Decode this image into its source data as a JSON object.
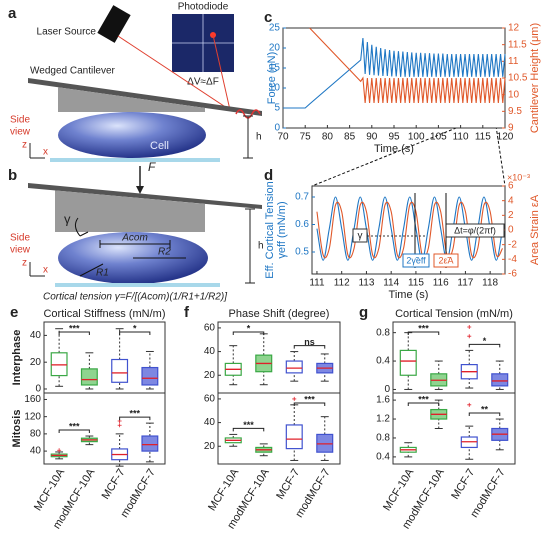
{
  "schematic_a": {
    "label": "a",
    "laser": "Laser Source",
    "photodiode": "Photodiode",
    "signal": "ΔV≈ΔF",
    "cantilever": "Wedged Cantilever",
    "side_view": [
      "Side",
      "view"
    ],
    "z": "z",
    "x": "x",
    "cell": "Cell",
    "h": "h"
  },
  "schematic_b": {
    "label": "b",
    "force": "F",
    "gamma": "γ",
    "side_view": [
      "Side",
      "view"
    ],
    "z": "z",
    "x": "x",
    "a_com": "Acom",
    "r2": "R2",
    "r1": "R1",
    "h": "h",
    "formula": "Cortical tension γ=F/[(Acom)(1/R1+1/R2)]"
  },
  "chart_data": [
    {
      "type": "line",
      "label": "c",
      "xlabel": "Time (s)",
      "ylabel": "Force (nN)",
      "y2label": "Cantilever Height (μm)",
      "xlim": [
        70,
        120
      ],
      "xticks": [
        70,
        75,
        80,
        85,
        90,
        95,
        100,
        105,
        110,
        115,
        120
      ],
      "ylim": [
        0,
        25
      ],
      "yticks": [
        0,
        5,
        10,
        15,
        20,
        25
      ],
      "y2lim": [
        9,
        12
      ],
      "y2ticks": [
        9,
        9.5,
        10,
        10.5,
        11,
        11.5,
        12
      ],
      "x": [
        70,
        75,
        76,
        87.5,
        88,
        88.5,
        89,
        89.5,
        90,
        90.5,
        91,
        91.5,
        92,
        92.5,
        93,
        93.5,
        94,
        94.5,
        95,
        95.5,
        96,
        96.5,
        97,
        97.5,
        98,
        98.5,
        99,
        99.5,
        100,
        100.5,
        101,
        101.5,
        102,
        102.5,
        103,
        103.5,
        104,
        104.5,
        105,
        105.5,
        106,
        106.5,
        107,
        107.5,
        108,
        108.5,
        109,
        109.5,
        110,
        110.5,
        111,
        111.5,
        112,
        112.5,
        113,
        113.5,
        114,
        114.5,
        115,
        115.5,
        116,
        116.5,
        117,
        117.5,
        118,
        118.5,
        119,
        119.5,
        120
      ],
      "series": [
        {
          "name": "Force",
          "color": "#1f77c4",
          "values": [
            5,
            5,
            6,
            17,
            22.5,
            13.5,
            21.5,
            13.3,
            20.8,
            13.2,
            20.3,
            13.1,
            20,
            13,
            19.7,
            13,
            19.5,
            12.9,
            19.3,
            12.9,
            19.2,
            12.8,
            19.1,
            12.8,
            19,
            12.8,
            18.9,
            12.8,
            18.8,
            12.8,
            18.8,
            12.8,
            18.7,
            12.8,
            18.7,
            12.8,
            18.6,
            12.8,
            18.6,
            12.8,
            18.6,
            12.8,
            18.5,
            12.8,
            18.5,
            12.8,
            18.5,
            12.8,
            18.5,
            12.8,
            18.5,
            12.8,
            18.5,
            12.8,
            18.5,
            12.8,
            18.5,
            12.8,
            18.5,
            12.8,
            18.5,
            12.8,
            18.5,
            12.8,
            18.5,
            12.8,
            18.5,
            12.8,
            18.5
          ]
        },
        {
          "name": "Cantilever Height",
          "color": "#e0582a",
          "axis": "y2",
          "values": [
            null,
            null,
            12,
            10.4,
            10.5,
            9.75,
            10.5,
            9.75,
            10.5,
            9.75,
            10.5,
            9.75,
            10.5,
            9.75,
            10.5,
            9.75,
            10.5,
            9.75,
            10.5,
            9.75,
            10.5,
            9.75,
            10.5,
            9.75,
            10.5,
            9.75,
            10.5,
            9.75,
            10.5,
            9.75,
            10.5,
            9.75,
            10.5,
            9.75,
            10.5,
            9.75,
            10.5,
            9.75,
            10.5,
            9.75,
            10.5,
            9.75,
            10.5,
            9.75,
            10.5,
            9.75,
            10.5,
            9.75,
            10.5,
            9.75,
            10.5,
            9.75,
            10.5,
            9.75,
            10.5,
            9.75,
            10.5,
            9.75,
            10.5,
            9.75,
            10.5,
            9.75,
            10.5,
            9.75,
            10.5,
            9.75,
            10.5,
            9.75,
            10.5
          ]
        }
      ]
    },
    {
      "type": "line",
      "label": "d",
      "xlabel": "Time (s)",
      "ylabel": [
        "Eff. Cortical Tension",
        "γeff (mN/m)"
      ],
      "y2label": "Area Strain εA",
      "y2_multiplier": "×10⁻³",
      "xlim": [
        110.8,
        118.6
      ],
      "xticks": [
        111,
        112,
        113,
        114,
        115,
        116,
        117,
        118
      ],
      "ylim": [
        0.42,
        0.74
      ],
      "yticks": [
        0.5,
        0.6,
        0.7
      ],
      "y2lim": [
        -6,
        6
      ],
      "y2ticks": [
        -6,
        -4,
        -2,
        0,
        2,
        4,
        6
      ],
      "annotations": [
        "γ",
        "Δt=φ/(2πf)",
        "2γ̃eff",
        "2ε̃A"
      ],
      "x": [
        111,
        111.25,
        111.5,
        111.75,
        112,
        112.25,
        112.5,
        112.75,
        113,
        113.25,
        113.5,
        113.75,
        114,
        114.25,
        114.5,
        114.75,
        115,
        115.25,
        115.5,
        115.75,
        116,
        116.25,
        116.5,
        116.75,
        117,
        117.25,
        117.5,
        117.75,
        118,
        118.25,
        118.5
      ],
      "series": [
        {
          "name": "Eff. Cortical Tension",
          "color": "#1f77c4",
          "values": [
            0.585,
            0.47,
            0.585,
            0.7,
            0.585,
            0.47,
            0.585,
            0.7,
            0.585,
            0.47,
            0.585,
            0.7,
            0.585,
            0.47,
            0.585,
            0.7,
            0.585,
            0.47,
            0.585,
            0.7,
            0.585,
            0.47,
            0.585,
            0.7,
            0.585,
            0.47,
            0.585,
            0.7,
            0.585,
            0.47,
            0.585
          ]
        },
        {
          "name": "Area Strain",
          "color": "#e0582a",
          "axis": "y2",
          "values": [
            2.5,
            -3.4,
            -2.5,
            3.4,
            2.5,
            -3.4,
            -2.5,
            3.4,
            2.5,
            -3.4,
            -2.5,
            3.4,
            2.5,
            -3.4,
            -2.5,
            3.4,
            2.5,
            -3.4,
            -2.5,
            3.4,
            2.5,
            -3.4,
            -2.5,
            3.4,
            2.5,
            -3.4,
            -2.5,
            3.4,
            2.5,
            -3.4,
            -2.5
          ]
        }
      ]
    },
    {
      "type": "box",
      "label": "e",
      "title": "Cortical Stiffness (mN/m)",
      "categories": [
        "MCF-10A",
        "modMCF-10A",
        "MCF-7",
        "modMCF-7"
      ],
      "styles": [
        {
          "edge": "#3aa845",
          "fill": "#ffffff"
        },
        {
          "edge": "#3aa845",
          "fill": "#8fd48f"
        },
        {
          "edge": "#4052cf",
          "fill": "#ffffff"
        },
        {
          "edge": "#4052cf",
          "fill": "#7d87e2"
        }
      ],
      "median_color": "#e0202a",
      "groups": [
        {
          "name": "Interphase",
          "ylim": [
            -3,
            50
          ],
          "yticks": [
            0,
            20,
            40
          ],
          "significance": [
            "***",
            "*"
          ],
          "boxes": [
            {
              "whislo": 2,
              "q1": 10,
              "med": 18,
              "q3": 27,
              "whishi": 45
            },
            {
              "whislo": 0,
              "q1": 3,
              "med": 7,
              "q3": 15,
              "whishi": 27
            },
            {
              "whislo": 0,
              "q1": 5,
              "med": 12,
              "q3": 22,
              "whishi": 45
            },
            {
              "whislo": 0,
              "q1": 3,
              "med": 8,
              "q3": 16,
              "whishi": 28
            }
          ]
        },
        {
          "name": "Mitosis",
          "ylim": [
            10,
            175
          ],
          "yticks": [
            40,
            80,
            120,
            160
          ],
          "significance": [
            "***",
            "***"
          ],
          "boxes": [
            {
              "whislo": 22,
              "q1": 27,
              "med": 30,
              "q3": 33,
              "whishi": 38,
              "fliers": [
                42
              ]
            },
            {
              "whislo": 55,
              "q1": 62,
              "med": 66,
              "q3": 70,
              "whishi": 75
            },
            {
              "whislo": 5,
              "q1": 20,
              "med": 32,
              "q3": 45,
              "whishi": 80,
              "fliers": [
                100,
                110
              ]
            },
            {
              "whislo": 15,
              "q1": 40,
              "med": 55,
              "q3": 75,
              "whishi": 105
            }
          ]
        }
      ]
    },
    {
      "type": "box",
      "label": "f",
      "title": "Phase Shift (degree)",
      "categories": [
        "MCF-10A",
        "modMCF-10A",
        "MCF-7",
        "modMCF-7"
      ],
      "styles": [
        {
          "edge": "#3aa845",
          "fill": "#ffffff"
        },
        {
          "edge": "#3aa845",
          "fill": "#8fd48f"
        },
        {
          "edge": "#4052cf",
          "fill": "#ffffff"
        },
        {
          "edge": "#4052cf",
          "fill": "#7d87e2"
        }
      ],
      "median_color": "#e0202a",
      "groups": [
        {
          "ylim": [
            5,
            65
          ],
          "yticks": [
            20,
            40,
            60
          ],
          "significance": [
            "*",
            "ns"
          ],
          "boxes": [
            {
              "whislo": 12,
              "q1": 20,
              "med": 25,
              "q3": 30,
              "whishi": 45
            },
            {
              "whislo": 12,
              "q1": 23,
              "med": 30,
              "q3": 37,
              "whishi": 55
            },
            {
              "whislo": 15,
              "q1": 22,
              "med": 26,
              "q3": 32,
              "whishi": 40
            },
            {
              "whislo": 15,
              "q1": 22,
              "med": 26,
              "q3": 30,
              "whishi": 38
            }
          ]
        },
        {
          "ylim": [
            5,
            65
          ],
          "yticks": [
            20,
            40,
            60
          ],
          "significance": [
            "***",
            "***"
          ],
          "boxes": [
            {
              "whislo": 20,
              "q1": 23,
              "med": 25,
              "q3": 27,
              "whishi": 30
            },
            {
              "whislo": 12,
              "q1": 15,
              "med": 17,
              "q3": 19,
              "whishi": 22
            },
            {
              "whislo": 8,
              "q1": 18,
              "med": 26,
              "q3": 38,
              "whishi": 55,
              "fliers": [
                60
              ]
            },
            {
              "whislo": 8,
              "q1": 15,
              "med": 22,
              "q3": 30,
              "whishi": 45
            }
          ]
        }
      ]
    },
    {
      "type": "box",
      "label": "g",
      "title": "Cortical Tension (mN/m)",
      "categories": [
        "MCF-10A",
        "modMCF-10A",
        "MCF-7",
        "modMCF-7"
      ],
      "styles": [
        {
          "edge": "#3aa845",
          "fill": "#ffffff"
        },
        {
          "edge": "#3aa845",
          "fill": "#8fd48f"
        },
        {
          "edge": "#4052cf",
          "fill": "#ffffff"
        },
        {
          "edge": "#4052cf",
          "fill": "#7d87e2"
        }
      ],
      "median_color": "#e0202a",
      "groups": [
        {
          "ylim": [
            -0.05,
            0.95
          ],
          "yticks": [
            0,
            0.4,
            0.8
          ],
          "significance": [
            "***",
            "*"
          ],
          "boxes": [
            {
              "whislo": 0,
              "q1": 0.2,
              "med": 0.4,
              "q3": 0.55,
              "whishi": 0.8
            },
            {
              "whislo": 0,
              "q1": 0.05,
              "med": 0.13,
              "q3": 0.22,
              "whishi": 0.4
            },
            {
              "whislo": 0.02,
              "q1": 0.15,
              "med": 0.25,
              "q3": 0.35,
              "whishi": 0.55,
              "fliers": [
                0.75,
                0.88
              ]
            },
            {
              "whislo": 0,
              "q1": 0.05,
              "med": 0.12,
              "q3": 0.22,
              "whishi": 0.4
            }
          ]
        },
        {
          "ylim": [
            0.25,
            1.75
          ],
          "yticks": [
            0.4,
            0.8,
            1.2,
            1.6
          ],
          "significance": [
            "***",
            "**"
          ],
          "boxes": [
            {
              "whislo": 0.4,
              "q1": 0.5,
              "med": 0.55,
              "q3": 0.6,
              "whishi": 0.7
            },
            {
              "whislo": 1.0,
              "q1": 1.2,
              "med": 1.3,
              "q3": 1.4,
              "whishi": 1.6
            },
            {
              "whislo": 0.35,
              "q1": 0.6,
              "med": 0.72,
              "q3": 0.82,
              "whishi": 1.05,
              "fliers": [
                1.5
              ]
            },
            {
              "whislo": 0.55,
              "q1": 0.75,
              "med": 0.88,
              "q3": 1.0,
              "whishi": 1.2
            }
          ]
        }
      ]
    }
  ]
}
